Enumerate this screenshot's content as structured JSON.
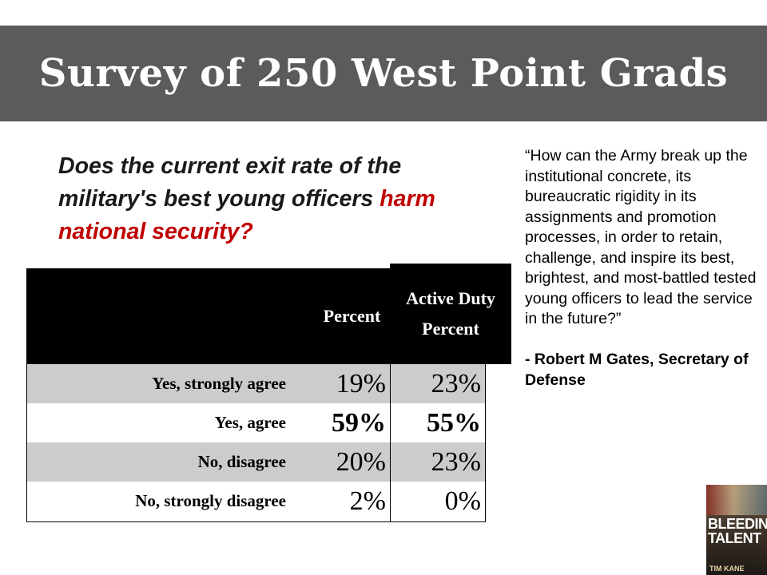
{
  "header": {
    "title": "Survey of 250 West Point Grads"
  },
  "question": {
    "part1": "Does the current exit rate of the military's best young officers ",
    "part2": "harm national security?"
  },
  "table": {
    "columns": [
      "Percent",
      "Active Duty Percent"
    ],
    "rows": [
      {
        "label": "Yes, strongly agree",
        "percent": "19%",
        "active": "23%"
      },
      {
        "label": "Yes, agree",
        "percent": "59%",
        "active": "55%"
      },
      {
        "label": "No, disagree",
        "percent": "20%",
        "active": "23%"
      },
      {
        "label": "No, strongly disagree",
        "percent": "2%",
        "active": "0%"
      }
    ]
  },
  "quote": {
    "text": "“How can the Army break up the institutional concrete, its bureaucratic rigidity in its assignments and promotion processes, in order to retain, challenge, and inspire its best, brightest, and most-battled tested young officers to lead the service in the future?”",
    "attribution": "- Robert M Gates, Secretary of Defense"
  },
  "book": {
    "title": "BLEEDING TALENT",
    "author": "TIM KANE"
  },
  "colors": {
    "title_bar": "#5b5b5b",
    "highlight": "#c00000",
    "header_fill": "#000000",
    "row_gray": "#cccccc"
  }
}
